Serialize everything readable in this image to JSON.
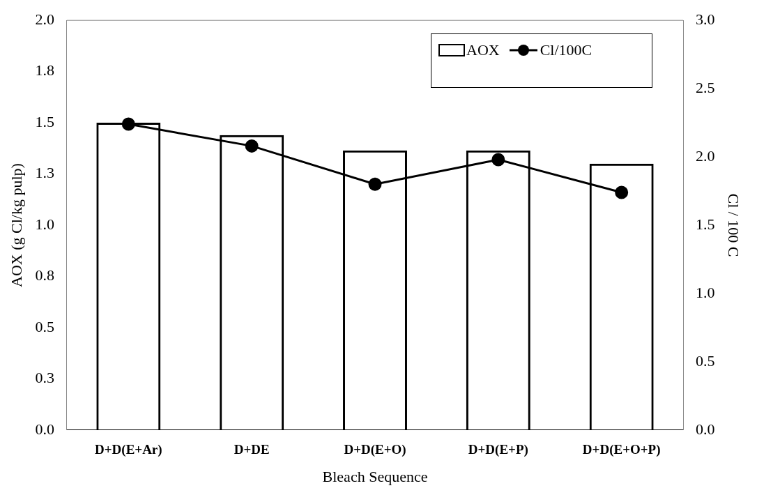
{
  "chart_data": {
    "type": "bar",
    "xlabel": "Bleach Sequence",
    "ylabel": "AOX (g Cl/kg pulp)",
    "y2label": "Cl / 100 C",
    "categories": [
      "D+D(E+Ar)",
      "D+DE",
      "D+D(E+O)",
      "D+D(E+P)",
      "D+D(E+O+P)"
    ],
    "series": [
      {
        "name": "AOX",
        "color": "#000000",
        "values": [
          1.5,
          1.44,
          1.365,
          1.365,
          1.3
        ]
      },
      {
        "name": "Cl/100C",
        "type": "line",
        "axis": "y2",
        "color": "#000000",
        "marker": "circle",
        "values": [
          2.24,
          2.08,
          1.8,
          1.98,
          1.74
        ]
      }
    ],
    "ylim": [
      0,
      2
    ],
    "yticks": [
      {
        "value": 0,
        "label": "0.0"
      },
      {
        "value": 0.25,
        "label": "0.3"
      },
      {
        "value": 0.5,
        "label": "0.5"
      },
      {
        "value": 0.75,
        "label": "0.8"
      },
      {
        "value": 1,
        "label": "1.0"
      },
      {
        "value": 1.25,
        "label": "1.3"
      },
      {
        "value": 1.5,
        "label": "1.5"
      },
      {
        "value": 1.75,
        "label": "1.8"
      },
      {
        "value": 2,
        "label": "2.0"
      }
    ],
    "y2lim": [
      0,
      3
    ],
    "y2ticks": [
      {
        "value": 0,
        "label": "0.0"
      },
      {
        "value": 0.5,
        "label": "0.5"
      },
      {
        "value": 1,
        "label": "1.0"
      },
      {
        "value": 1.5,
        "label": "1.5"
      },
      {
        "value": 2,
        "label": "2.0"
      },
      {
        "value": 2.5,
        "label": "2.5"
      },
      {
        "value": 3,
        "label": "3.0"
      }
    ],
    "legend": "top right",
    "grid": false
  }
}
